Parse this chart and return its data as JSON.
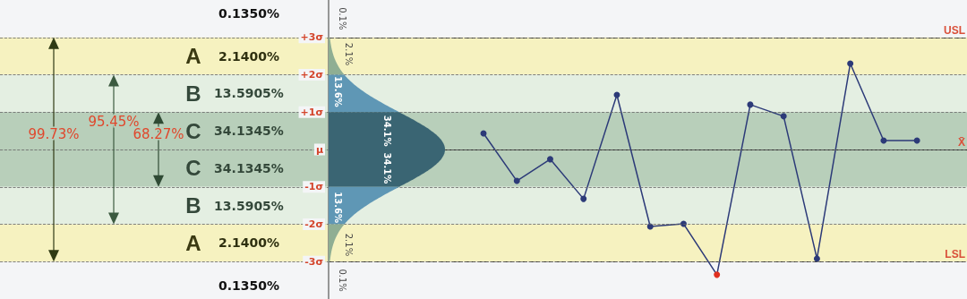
{
  "chart_data": {
    "type": "line",
    "categories": [
      null,
      null,
      null,
      null,
      null,
      null,
      null,
      null,
      null,
      null,
      null,
      null,
      null,
      null,
      null,
      null,
      null,
      null,
      null,
      null,
      null,
      null,
      null,
      null,
      null,
      null,
      null,
      null,
      null
    ],
    "series": [
      {
        "color": "#2c3a78",
        "colors": [
          "#2c3a78",
          "#2c3a78",
          "#2c3a78",
          "#2c3a78",
          "#2c3a78",
          "#2c3a78",
          "#2c3a78",
          "#2c3a78",
          "#2c3a78",
          "#2c3a78",
          "#2c3a78",
          "#2c3a78",
          "#2c3a78",
          "#2c3a78",
          "#2c3a78",
          "#2c3a78",
          "#2c3a78",
          "#2c3a78",
          "#2c3a78",
          "#2c3a78",
          "#2c3a78",
          "#e03020",
          "#2c3a78",
          "#2c3a78",
          "#2c3a78",
          "#2c3a78",
          "#2c3a78",
          "#2c3a78",
          "#2c3a78"
        ],
        "values": [
          null,
          null,
          null,
          null,
          null,
          null,
          null,
          null,
          null,
          null,
          null,
          null,
          null,
          null,
          0.43,
          -0.84,
          -0.26,
          -1.32,
          1.46,
          -2.06,
          -1.99,
          -3.35,
          1.2,
          0.89,
          -2.92,
          2.3,
          0.24,
          0.24,
          null
        ]
      }
    ],
    "ylim": [
      -4,
      4
    ],
    "yticks": [
      {
        "value": -3,
        "label": "-3σ"
      },
      {
        "value": -2,
        "label": "-2σ"
      },
      {
        "value": -1,
        "label": "-1σ"
      },
      {
        "value": 0,
        "label": "μ"
      },
      {
        "value": 1,
        "label": "+1σ"
      },
      {
        "value": 2,
        "label": "+2σ"
      },
      {
        "value": 3,
        "label": "+3σ"
      }
    ],
    "tick_labels": "y",
    "grid": "y",
    "marker": "circle",
    "line_style": "solid",
    "bands": [
      {
        "axis": "y",
        "from": 2,
        "to": 3,
        "label": "A",
        "color": "#f6f2c0"
      },
      {
        "axis": "y",
        "from": 1,
        "to": 2,
        "label": "B",
        "color": "#e4efe2"
      },
      {
        "axis": "y",
        "from": 0,
        "to": 1,
        "label": "C",
        "color": "#b8cfba"
      },
      {
        "axis": "y",
        "from": -1,
        "to": 0,
        "label": "C",
        "color": "#b8cfba"
      },
      {
        "axis": "y",
        "from": -2,
        "to": -1,
        "label": "B",
        "color": "#e4efe2"
      },
      {
        "axis": "y",
        "from": -3,
        "to": -2,
        "label": "A",
        "color": "#f6f2c0"
      }
    ],
    "ref_lines": [
      {
        "axis": "y",
        "value": 3,
        "label": "USL",
        "color": "#333333",
        "line_style": "dashed"
      },
      {
        "axis": "y",
        "value": 0,
        "label": "X̄",
        "color": "#222222",
        "line_style": "solid"
      },
      {
        "axis": "y",
        "value": -3,
        "label": "LSL",
        "color": "#333333",
        "line_style": "dashed"
      }
    ],
    "annotations": [
      "0.1350%",
      "2.1400%",
      "13.5905%",
      "34.1345%",
      "34.1345%",
      "13.5905%",
      "2.1400%",
      "0.1350%",
      "99.73%",
      "95.45%",
      "68.27%",
      "0.1%",
      "2.1%",
      "13.6%",
      "34.1%",
      "34.1%",
      "13.6%",
      "2.1%",
      "0.1%"
    ]
  }
}
